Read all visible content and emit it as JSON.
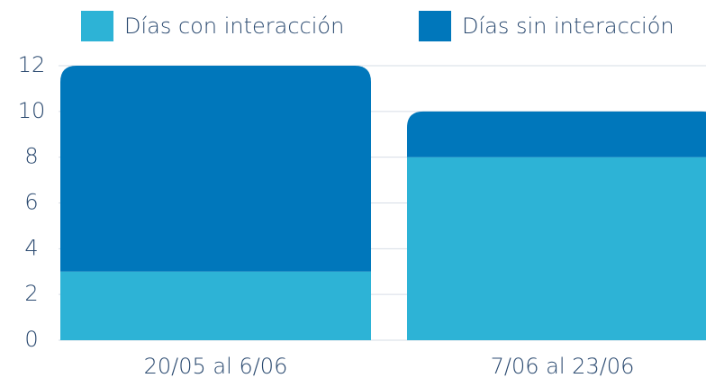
{
  "chart_data": {
    "type": "stacked_bar",
    "categories": [
      "20/05 al 6/06",
      "7/06 al 23/06"
    ],
    "series": [
      {
        "name": "Días con interacción",
        "color": "#2db3d6",
        "values": [
          3,
          8
        ]
      },
      {
        "name": "Días sin interacción",
        "color": "#0077bb",
        "values": [
          9,
          2
        ]
      }
    ],
    "ylim": [
      0,
      12
    ],
    "yticks": [
      0,
      2,
      4,
      6,
      8,
      10,
      12
    ],
    "grid": true,
    "legend": "top"
  }
}
